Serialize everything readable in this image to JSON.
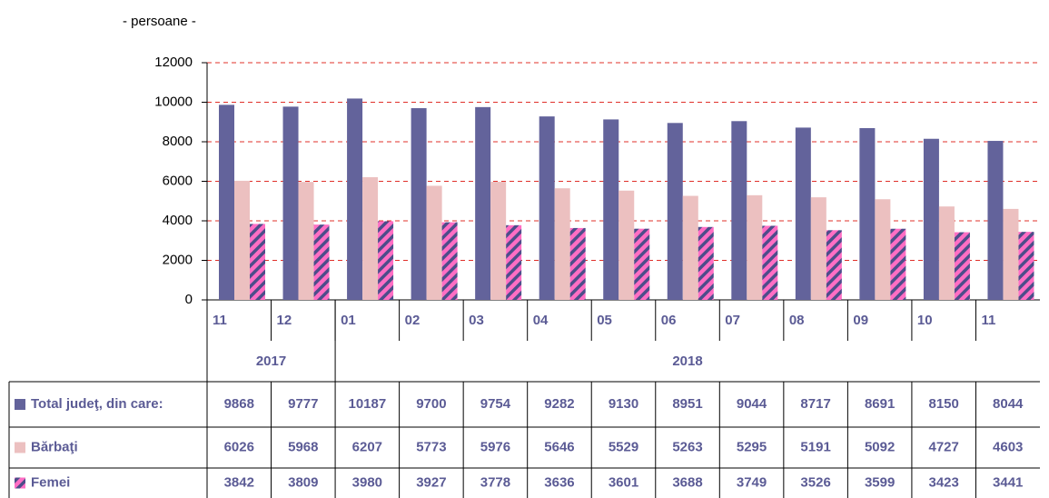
{
  "chart_data": {
    "type": "bar",
    "y_axis_label": "- persoane -",
    "categories": [
      "11",
      "12",
      "01",
      "02",
      "03",
      "04",
      "05",
      "06",
      "07",
      "08",
      "09",
      "10",
      "11"
    ],
    "groups": [
      {
        "label": "2017",
        "span": 2
      },
      {
        "label": "2018",
        "span": 11
      }
    ],
    "series": [
      {
        "name": "Total judeţ, din care:",
        "color": "#63639b",
        "values": [
          9868,
          9777,
          10187,
          9700,
          9754,
          9282,
          9130,
          8951,
          9044,
          8717,
          8691,
          8150,
          8044
        ]
      },
      {
        "name": "Bărbaţi",
        "color": "#ecc0c0",
        "values": [
          6026,
          5968,
          6207,
          5773,
          5976,
          5646,
          5529,
          5263,
          5295,
          5191,
          5092,
          4727,
          4603
        ]
      },
      {
        "name": "Femei",
        "color": "#ff6ec4",
        "values": [
          3842,
          3809,
          3980,
          3927,
          3778,
          3636,
          3601,
          3688,
          3749,
          3526,
          3599,
          3423,
          3441
        ]
      }
    ],
    "ylim": [
      0,
      12000
    ],
    "yticks": [
      0,
      2000,
      4000,
      6000,
      8000,
      10000,
      12000
    ],
    "grid": true
  }
}
